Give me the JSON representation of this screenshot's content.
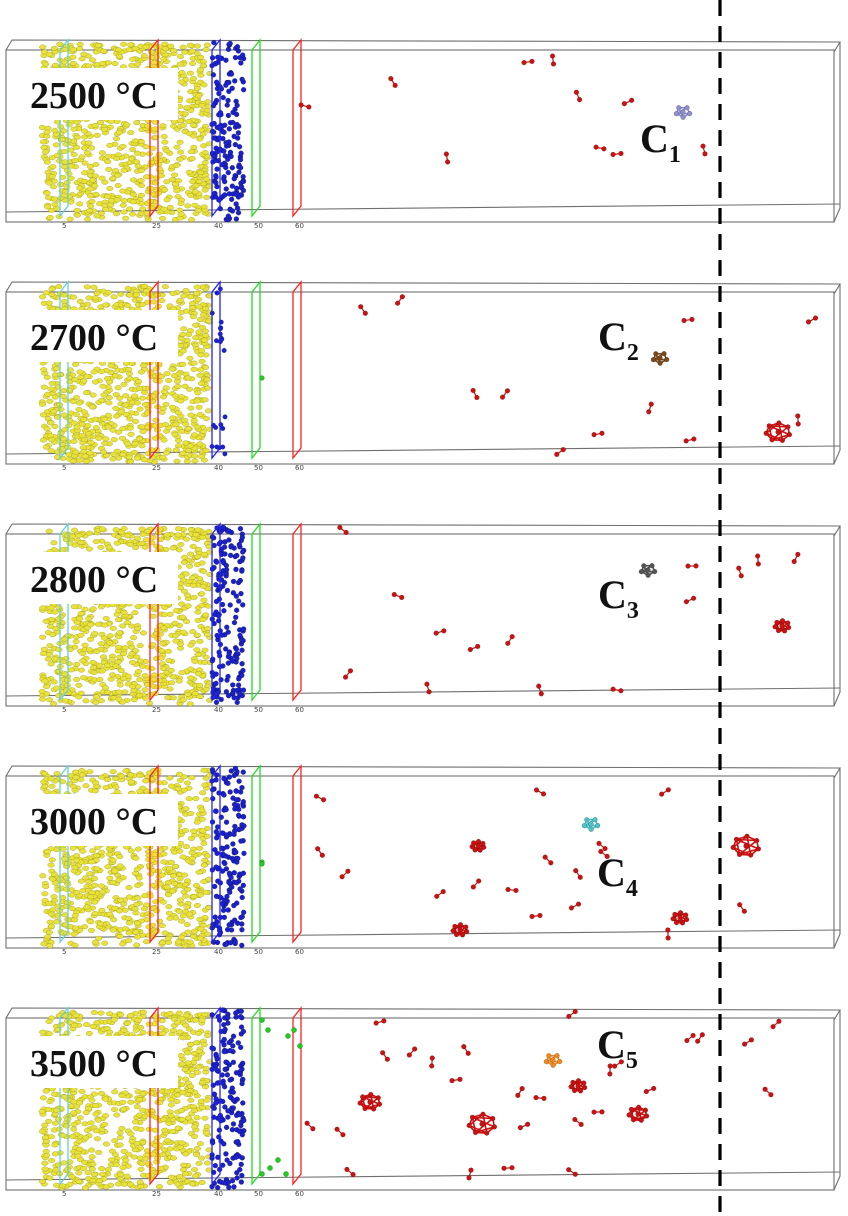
{
  "panels": [
    {
      "temperature": "2500 °C",
      "cluster": "C",
      "cluster_index": "1",
      "cluster_color": "#8f8fd0",
      "ticks": [
        "5",
        "25",
        "40",
        "50",
        "60"
      ],
      "blue_density": "high",
      "green_atoms": "none"
    },
    {
      "temperature": "2700 °C",
      "cluster": "C",
      "cluster_index": "2",
      "cluster_color": "#7a4a1c",
      "ticks": [
        "5",
        "25",
        "40",
        "50",
        "60"
      ],
      "blue_density": "sparse",
      "green_atoms": "few"
    },
    {
      "temperature": "2800 °C",
      "cluster": "C",
      "cluster_index": "3",
      "cluster_color": "#555555",
      "ticks": [
        "5",
        "25",
        "40",
        "50",
        "60"
      ],
      "blue_density": "high",
      "green_atoms": "none"
    },
    {
      "temperature": "3000 °C",
      "cluster": "C",
      "cluster_index": "4",
      "cluster_color": "#4cc3c9",
      "ticks": [
        "5",
        "25",
        "40",
        "50",
        "60"
      ],
      "blue_density": "high",
      "green_atoms": "few"
    },
    {
      "temperature": "3500 °C",
      "cluster": "C",
      "cluster_index": "5",
      "cluster_color": "#f08a1e",
      "ticks": [
        "5",
        "25",
        "40",
        "50",
        "60"
      ],
      "blue_density": "high",
      "green_atoms": "many"
    }
  ],
  "colors": {
    "box_edge": "#6f6f6f",
    "yellow_atoms": "#e8e23a",
    "blue_atoms": "#1b22c8",
    "red_atoms": "#cc1111",
    "green_atoms": "#22cc22",
    "plane_cyan": "#66d0d8",
    "plane_red": "#ff2020",
    "plane_blue": "#2020ff",
    "plane_green": "#22dd22",
    "dashed_line": "#000000"
  }
}
